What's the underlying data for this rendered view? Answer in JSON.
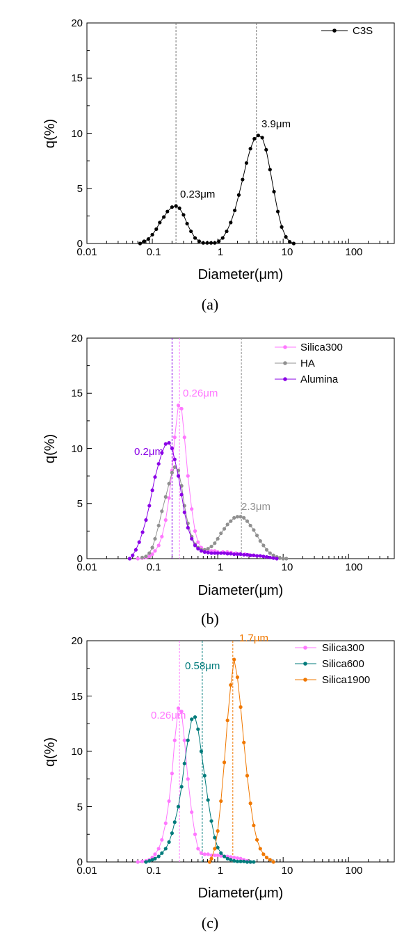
{
  "chart_data": [
    {
      "type": "scatter",
      "caption": "(a)",
      "xlabel": "Diameter(μm)",
      "ylabel": "q(%)",
      "xscale": "log",
      "xlim": [
        0.01,
        500
      ],
      "ylim": [
        0,
        20
      ],
      "xticks": [
        {
          "value": 0.01,
          "label": "0.01"
        },
        {
          "value": 0.1,
          "label": "0.1"
        },
        {
          "value": 1,
          "label": "1"
        },
        {
          "value": 10,
          "label": "10"
        },
        {
          "value": 100,
          "label": "100"
        }
      ],
      "yticks": [
        {
          "value": 0,
          "label": "0"
        },
        {
          "value": 5,
          "label": "5"
        },
        {
          "value": 10,
          "label": "10"
        },
        {
          "value": 15,
          "label": "15"
        },
        {
          "value": 20,
          "label": "20"
        }
      ],
      "legend": "top-right",
      "series": [
        {
          "name": "C3S",
          "color": "#000000",
          "x": [
            0.065,
            0.075,
            0.087,
            0.1,
            0.115,
            0.13,
            0.15,
            0.17,
            0.2,
            0.23,
            0.26,
            0.3,
            0.34,
            0.39,
            0.45,
            0.52,
            0.6,
            0.69,
            0.79,
            0.9,
            1.04,
            1.19,
            1.37,
            1.58,
            1.82,
            2.1,
            2.4,
            2.75,
            3.16,
            3.63,
            4.17,
            4.79,
            5.5,
            6.3,
            7.25,
            8.3,
            9.5,
            11.0,
            12.6,
            14.5
          ],
          "y": [
            0,
            0.2,
            0.4,
            0.8,
            1.3,
            1.9,
            2.4,
            2.9,
            3.3,
            3.4,
            3.2,
            2.6,
            1.8,
            1.1,
            0.5,
            0.2,
            0.05,
            0.05,
            0.05,
            0.05,
            0.2,
            0.5,
            1.1,
            1.9,
            3.0,
            4.4,
            5.8,
            7.3,
            8.6,
            9.5,
            9.8,
            9.6,
            8.5,
            6.7,
            4.7,
            2.9,
            1.5,
            0.6,
            0.15,
            0
          ]
        }
      ],
      "annotations": [
        {
          "label": "0.23μm",
          "x": 0.23,
          "color": "#000000",
          "vline_color": "#777777"
        },
        {
          "label": "3.9μm",
          "x": 3.9,
          "color": "#000000",
          "vline_color": "#777777"
        }
      ]
    },
    {
      "type": "scatter",
      "caption": "(b)",
      "xlabel": "Diameter(μm)",
      "ylabel": "q(%)",
      "xscale": "log",
      "xlim": [
        0.01,
        500
      ],
      "ylim": [
        0,
        20
      ],
      "xticks": [
        {
          "value": 0.01,
          "label": "0.01"
        },
        {
          "value": 0.1,
          "label": "0.1"
        },
        {
          "value": 1,
          "label": "1"
        },
        {
          "value": 10,
          "label": "10"
        },
        {
          "value": 100,
          "label": "100"
        }
      ],
      "yticks": [
        {
          "value": 0,
          "label": "0"
        },
        {
          "value": 5,
          "label": "5"
        },
        {
          "value": 10,
          "label": "10"
        },
        {
          "value": 15,
          "label": "15"
        },
        {
          "value": 20,
          "label": "20"
        }
      ],
      "legend": "top-right",
      "series": [
        {
          "name": "Silica300",
          "color": "#ff77ff",
          "x": [
            0.06,
            0.07,
            0.08,
            0.09,
            0.1,
            0.11,
            0.125,
            0.14,
            0.16,
            0.18,
            0.2,
            0.22,
            0.25,
            0.28,
            0.31,
            0.35,
            0.4,
            0.45,
            0.5,
            0.56,
            0.63,
            0.71,
            0.8,
            0.9,
            1.0,
            1.2,
            1.4,
            1.6,
            1.9,
            2.2,
            2.6,
            3.0,
            3.5,
            4.0
          ],
          "y": [
            0,
            0.05,
            0.1,
            0.2,
            0.4,
            0.7,
            1.2,
            2.0,
            3.5,
            5.5,
            8.0,
            11.0,
            13.9,
            13.6,
            11.0,
            7.5,
            4.5,
            2.5,
            1.5,
            1.0,
            0.8,
            0.7,
            0.7,
            0.7,
            0.6,
            0.6,
            0.6,
            0.55,
            0.5,
            0.45,
            0.4,
            0.35,
            0.3,
            0.25
          ]
        },
        {
          "name": "HA",
          "color": "#909090",
          "x": [
            0.07,
            0.08,
            0.09,
            0.1,
            0.11,
            0.125,
            0.14,
            0.16,
            0.18,
            0.2,
            0.22,
            0.25,
            0.28,
            0.31,
            0.35,
            0.4,
            0.45,
            0.5,
            0.56,
            0.63,
            0.71,
            0.8,
            0.9,
            1.0,
            1.12,
            1.26,
            1.41,
            1.58,
            1.78,
            2.0,
            2.24,
            2.51,
            2.82,
            3.16,
            3.55,
            3.98,
            4.47,
            5.0,
            5.6,
            6.3,
            7.1,
            8.0,
            8.9,
            10.0,
            11.2
          ],
          "y": [
            0.1,
            0.2,
            0.5,
            1.0,
            1.8,
            3.0,
            4.3,
            5.6,
            6.8,
            7.8,
            8.3,
            8.0,
            6.6,
            4.8,
            3.2,
            2.0,
            1.3,
            1.0,
            0.8,
            0.8,
            0.9,
            1.1,
            1.4,
            1.8,
            2.3,
            2.7,
            3.1,
            3.4,
            3.7,
            3.8,
            3.8,
            3.7,
            3.4,
            3.0,
            2.6,
            2.1,
            1.6,
            1.2,
            0.8,
            0.5,
            0.3,
            0.15,
            0.05,
            0,
            0
          ]
        },
        {
          "name": "Alumina",
          "color": "#8a00e6",
          "x": [
            0.045,
            0.05,
            0.056,
            0.063,
            0.071,
            0.08,
            0.09,
            0.1,
            0.11,
            0.125,
            0.14,
            0.16,
            0.18,
            0.2,
            0.22,
            0.25,
            0.28,
            0.31,
            0.35,
            0.4,
            0.45,
            0.5,
            0.56,
            0.63,
            0.71,
            0.8,
            0.9,
            1.0,
            1.12,
            1.26,
            1.41,
            1.58,
            1.78,
            2.0,
            2.24,
            2.51,
            2.82,
            3.16,
            3.55,
            3.98,
            4.47,
            5.0,
            5.6,
            6.3,
            7.1,
            8.0
          ],
          "y": [
            0,
            0.3,
            0.8,
            1.5,
            2.4,
            3.5,
            4.8,
            6.2,
            7.4,
            8.6,
            9.6,
            10.4,
            10.5,
            10.0,
            9.0,
            7.5,
            5.8,
            4.2,
            2.8,
            1.8,
            1.2,
            0.9,
            0.7,
            0.6,
            0.55,
            0.5,
            0.5,
            0.5,
            0.5,
            0.5,
            0.45,
            0.45,
            0.4,
            0.4,
            0.4,
            0.35,
            0.35,
            0.3,
            0.3,
            0.25,
            0.25,
            0.2,
            0.15,
            0.1,
            0.05,
            0
          ]
        }
      ],
      "annotations": [
        {
          "label": "0.26μm",
          "x": 0.26,
          "color": "#ff77ff",
          "vline_color": "#ff77ff"
        },
        {
          "label": "0.2μm",
          "x": 0.2,
          "color": "#8a00e6",
          "vline_color": "#8a00e6"
        },
        {
          "label": "2.3μm",
          "x": 2.3,
          "color": "#909090",
          "vline_color": "#909090"
        }
      ]
    },
    {
      "type": "scatter",
      "caption": "(c)",
      "xlabel": "Diameter(μm)",
      "ylabel": "q(%)",
      "xscale": "log",
      "xlim": [
        0.01,
        500
      ],
      "ylim": [
        0,
        20
      ],
      "xticks": [
        {
          "value": 0.01,
          "label": "0.01"
        },
        {
          "value": 0.1,
          "label": "0.1"
        },
        {
          "value": 1,
          "label": "1"
        },
        {
          "value": 10,
          "label": "10"
        },
        {
          "value": 100,
          "label": "100"
        }
      ],
      "yticks": [
        {
          "value": 0,
          "label": "0"
        },
        {
          "value": 5,
          "label": "5"
        },
        {
          "value": 10,
          "label": "10"
        },
        {
          "value": 15,
          "label": "15"
        },
        {
          "value": 20,
          "label": "20"
        }
      ],
      "legend": "top-right",
      "series": [
        {
          "name": "Silica300",
          "color": "#ff77ff",
          "x": [
            0.06,
            0.07,
            0.08,
            0.09,
            0.1,
            0.11,
            0.125,
            0.14,
            0.16,
            0.18,
            0.2,
            0.22,
            0.25,
            0.28,
            0.31,
            0.35,
            0.4,
            0.45,
            0.5,
            0.56,
            0.63,
            0.71,
            0.8,
            0.9,
            1.0,
            1.12,
            1.26,
            1.41,
            1.58,
            1.78,
            2.0,
            2.24,
            2.51,
            2.82,
            3.16
          ],
          "y": [
            0,
            0.05,
            0.1,
            0.2,
            0.4,
            0.7,
            1.2,
            2.0,
            3.5,
            5.5,
            8.0,
            11.0,
            13.9,
            13.6,
            11.0,
            7.5,
            4.5,
            2.5,
            1.2,
            0.8,
            0.7,
            0.7,
            0.6,
            0.6,
            0.6,
            0.55,
            0.5,
            0.5,
            0.45,
            0.4,
            0.35,
            0.3,
            0.2,
            0.1,
            0
          ]
        },
        {
          "name": "Silica600",
          "color": "#007b7b",
          "x": [
            0.08,
            0.09,
            0.1,
            0.11,
            0.125,
            0.14,
            0.16,
            0.18,
            0.2,
            0.22,
            0.25,
            0.28,
            0.31,
            0.35,
            0.4,
            0.45,
            0.5,
            0.56,
            0.63,
            0.71,
            0.8,
            0.9,
            1.0,
            1.12,
            1.26,
            1.41,
            1.58,
            1.78,
            2.0,
            2.24,
            2.51,
            2.82,
            3.16,
            3.55
          ],
          "y": [
            0,
            0.1,
            0.2,
            0.3,
            0.5,
            0.8,
            1.2,
            1.8,
            2.6,
            3.6,
            5.0,
            6.8,
            8.9,
            11.0,
            12.9,
            13.1,
            12.0,
            10.0,
            7.8,
            5.6,
            3.7,
            2.2,
            1.3,
            0.8,
            0.5,
            0.3,
            0.2,
            0.1,
            0.05,
            0.05,
            0.05,
            0,
            0,
            0
          ]
        },
        {
          "name": "Silica1900",
          "color": "#f07800",
          "x": [
            0.75,
            0.8,
            0.9,
            1.0,
            1.12,
            1.26,
            1.41,
            1.58,
            1.78,
            2.0,
            2.24,
            2.51,
            2.82,
            3.16,
            3.55,
            3.98,
            4.47,
            5.0,
            5.6,
            6.3,
            7.1
          ],
          "y": [
            0,
            0.3,
            1.2,
            2.8,
            5.5,
            9.0,
            12.8,
            16.0,
            18.3,
            16.7,
            14.0,
            10.8,
            7.8,
            5.3,
            3.3,
            2.0,
            1.2,
            0.7,
            0.4,
            0.2,
            0
          ]
        }
      ],
      "annotations": [
        {
          "label": "0.26μm",
          "x": 0.26,
          "color": "#ff77ff",
          "vline_color": "#ff77ff"
        },
        {
          "label": "0.58μm",
          "x": 0.58,
          "color": "#007b7b",
          "vline_color": "#007b7b"
        },
        {
          "label": "1.7μm",
          "x": 1.7,
          "color": "#f07800",
          "vline_color": "#f07800"
        }
      ]
    }
  ]
}
